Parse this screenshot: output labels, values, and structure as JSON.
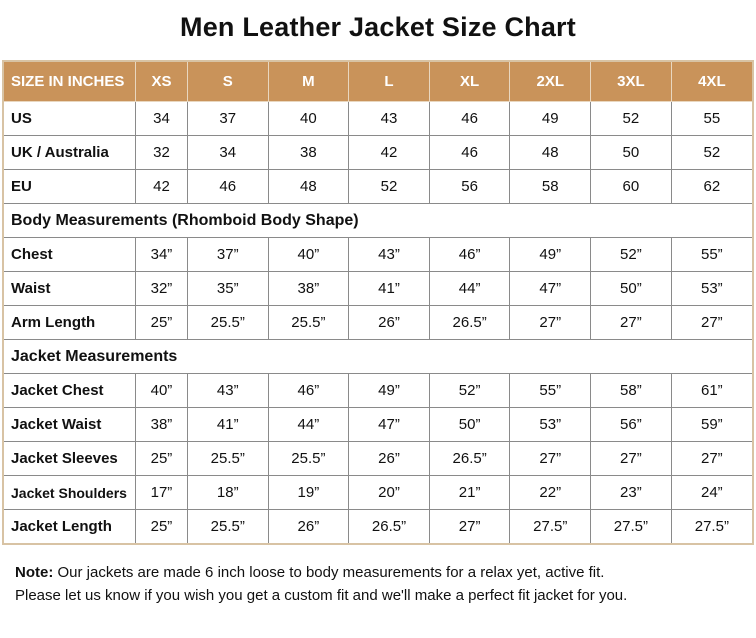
{
  "title": "Men Leather Jacket Size Chart",
  "header": {
    "label": "SIZE IN INCHES",
    "sizes": [
      "XS",
      "S",
      "M",
      "L",
      "XL",
      "2XL",
      "3XL",
      "4XL"
    ]
  },
  "header_color": "#c9935a",
  "rows": [
    {
      "label": "US",
      "values": [
        "34",
        "37",
        "40",
        "43",
        "46",
        "49",
        "52",
        "55"
      ]
    },
    {
      "label": "UK / Australia",
      "values": [
        "32",
        "34",
        "38",
        "42",
        "46",
        "48",
        "50",
        "52"
      ]
    },
    {
      "label": "EU",
      "values": [
        "42",
        "46",
        "48",
        "52",
        "56",
        "58",
        "60",
        "62"
      ]
    },
    {
      "section": "Body Measurements (Rhomboid Body Shape)"
    },
    {
      "label": "Chest",
      "values": [
        "34”",
        "37”",
        "40”",
        "43”",
        "46”",
        "49”",
        "52”",
        "55”"
      ]
    },
    {
      "label": "Waist",
      "values": [
        "32”",
        "35”",
        "38”",
        "41”",
        "44”",
        "47”",
        "50”",
        "53”"
      ]
    },
    {
      "label": "Arm Length",
      "values": [
        "25”",
        "25.5”",
        "25.5”",
        "26”",
        "26.5”",
        "27”",
        "27”",
        "27”"
      ]
    },
    {
      "section": "Jacket Measurements"
    },
    {
      "label": "Jacket Chest",
      "values": [
        "40”",
        "43”",
        "46”",
        "49”",
        "52”",
        "55”",
        "58”",
        "61”"
      ]
    },
    {
      "label": "Jacket Waist",
      "values": [
        "38”",
        "41”",
        "44”",
        "47”",
        "50”",
        "53”",
        "56”",
        "59”"
      ]
    },
    {
      "label": "Jacket Sleeves",
      "values": [
        "25”",
        "25.5”",
        "25.5”",
        "26”",
        "26.5”",
        "27”",
        "27”",
        "27”"
      ]
    },
    {
      "label": "Jacket Shoulders",
      "values": [
        "17”",
        "18”",
        "19”",
        "20”",
        "21”",
        "22”",
        "23”",
        "24”"
      ]
    },
    {
      "label": "Jacket Length",
      "values": [
        "25”",
        "25.5”",
        "26”",
        "26.5”",
        "27”",
        "27.5”",
        "27.5”",
        "27.5”"
      ]
    }
  ],
  "note": {
    "label": "Note:",
    "line1": "Our jackets are made 6 inch loose to body measurements for a relax yet, active fit.",
    "line2": "Please let us know if you wish you get a custom fit and we'll make a perfect fit jacket for you."
  }
}
